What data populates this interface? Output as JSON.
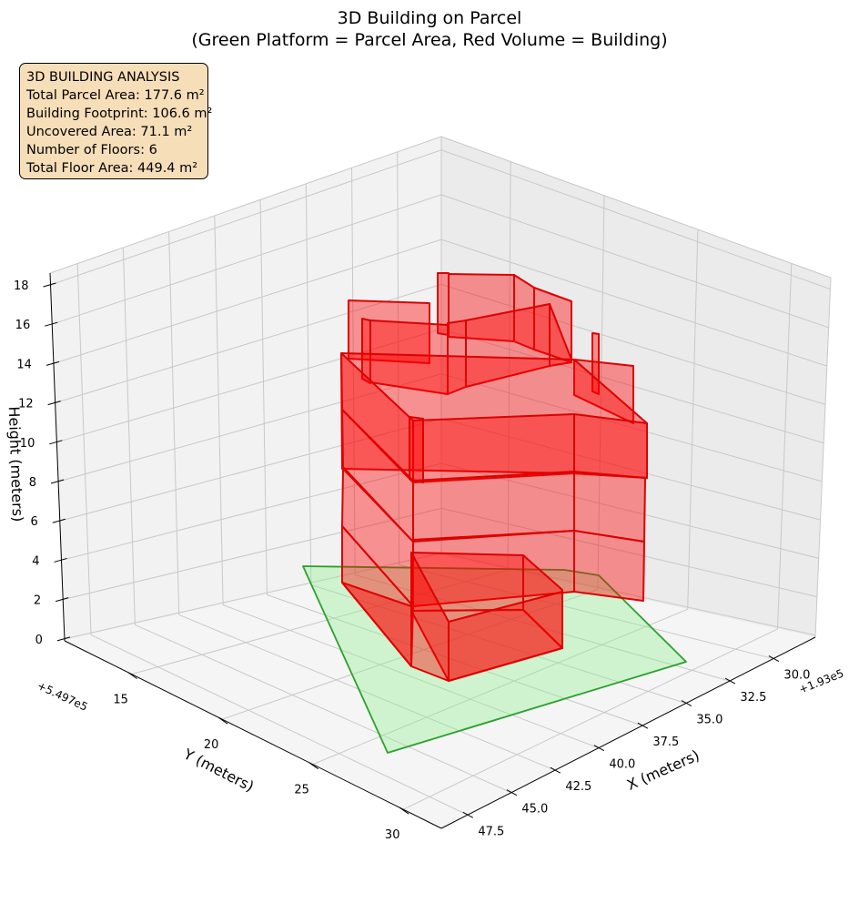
{
  "chart_data": {
    "type": "3d",
    "title": "3D Building on Parcel",
    "subtitle": "(Green Platform = Parcel Area, Red Volume = Building)",
    "xlabel": "X (meters)",
    "ylabel": "Y (meters)",
    "zlabel": "Height (meters)",
    "x_offset": "+1.93e5",
    "y_offset": "+5.497e5",
    "x_ticks": [
      "30.0",
      "32.5",
      "35.0",
      "37.5",
      "40.0",
      "42.5",
      "45.0",
      "47.5"
    ],
    "y_ticks": [
      "15",
      "20",
      "25",
      "30"
    ],
    "z_ticks": [
      "0",
      "2",
      "4",
      "6",
      "8",
      "10",
      "12",
      "14",
      "16",
      "18"
    ],
    "grid": true,
    "series": [
      {
        "name": "Parcel Area",
        "color": "#2ca02c",
        "fill": "#90ee90"
      },
      {
        "name": "Building",
        "color": "#dd0000",
        "fill": "#ff0000"
      }
    ],
    "stats": {
      "heading": "3D BUILDING ANALYSIS",
      "lines": [
        "Total Parcel Area: 177.6 m²",
        "Building Footprint: 106.6 m²",
        "Uncovered Area: 71.1 m²",
        "Number of Floors: 6",
        "Total Floor Area: 449.4 m²"
      ],
      "legend_position": "top-left"
    }
  }
}
